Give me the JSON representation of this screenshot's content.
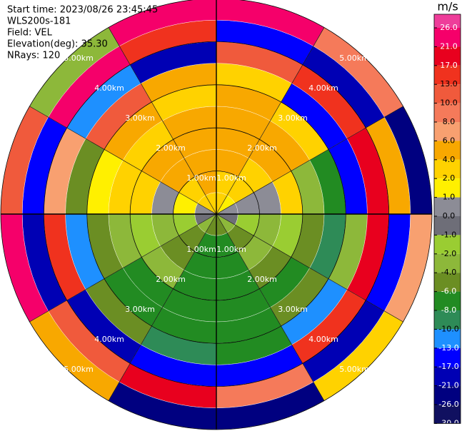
{
  "chart_data": {
    "type": "polar-field",
    "header": [
      "Start time: 2023/08/26 23:45:45",
      "WLS200s-181",
      "Field: VEL",
      "Elevation(deg): 35.30",
      "NRays: 120"
    ],
    "range_rings": [
      {
        "value": 1,
        "label": "1.00km"
      },
      {
        "value": 2,
        "label": "2.00km"
      },
      {
        "value": 3,
        "label": "3.00km"
      },
      {
        "value": 4,
        "label": "4.00km"
      },
      {
        "value": 5,
        "label": "5.00km"
      }
    ],
    "field": [
      [
        3,
        3,
        5,
        5,
        5,
        5,
        3,
        12,
        -15,
        22
      ],
      [
        1,
        3,
        3,
        5,
        5,
        3,
        -15,
        15,
        -20,
        9
      ],
      [
        0,
        0.5,
        0.5,
        3,
        -3,
        -8,
        -15,
        20,
        5,
        -22
      ],
      [
        -1,
        -1.5,
        -3,
        -1.5,
        -5,
        -10,
        -3,
        18,
        -14,
        7
      ],
      [
        -3,
        -5,
        -3,
        -5,
        -7,
        -5,
        -11,
        14,
        -20,
        3
      ],
      [
        -5,
        -7,
        -7,
        -7,
        -7,
        -7,
        -7,
        -14,
        9,
        -24
      ],
      [
        -5,
        -7,
        -7,
        -7,
        -7,
        -7,
        -9,
        -15,
        19,
        -25
      ],
      [
        -3,
        -5,
        -5,
        -3,
        -7,
        -7,
        -5,
        -18,
        11,
        5
      ],
      [
        -1,
        -1.5,
        -3,
        -1.5,
        -3,
        -5,
        -12,
        16,
        -20,
        24
      ],
      [
        0.5,
        1.5,
        0.5,
        3,
        3,
        1.5,
        -5,
        7,
        -16,
        12
      ],
      [
        3,
        3,
        5,
        5,
        3,
        5,
        12,
        -11,
        22,
        -3
      ],
      [
        3,
        5,
        5,
        5,
        5,
        3,
        5,
        -18,
        14,
        23
      ]
    ],
    "colorbar": {
      "title": "m/s",
      "ticks": [
        {
          "value": 26,
          "label": "26.0"
        },
        {
          "value": 21,
          "label": "21.0"
        },
        {
          "value": 17,
          "label": "17.0"
        },
        {
          "value": 13,
          "label": "13.0"
        },
        {
          "value": 10,
          "label": "10.0"
        },
        {
          "value": 8,
          "label": "8.0"
        },
        {
          "value": 6,
          "label": "6.0"
        },
        {
          "value": 4,
          "label": "4.0"
        },
        {
          "value": 2,
          "label": "2.0"
        },
        {
          "value": 1,
          "label": "1.0"
        },
        {
          "value": 0,
          "label": "0.0"
        },
        {
          "value": -1,
          "label": "-1.0"
        },
        {
          "value": -2,
          "label": "-2.0"
        },
        {
          "value": -4,
          "label": "-4.0"
        },
        {
          "value": -6,
          "label": "-6.0"
        },
        {
          "value": -8,
          "label": "-8.0"
        },
        {
          "value": -10,
          "label": "-10.0"
        },
        {
          "value": -13,
          "label": "-13.0"
        },
        {
          "value": -17,
          "label": "-17.0"
        },
        {
          "value": -21,
          "label": "-21.0"
        },
        {
          "value": -26,
          "label": "-26.0"
        },
        {
          "value": -30,
          "label": "-30.0"
        }
      ],
      "colors": [
        "#ee3d9a",
        "#f5006a",
        "#e8001e",
        "#f0321e",
        "#f05a3c",
        "#f57a5a",
        "#f8a070",
        "#f8a800",
        "#ffd200",
        "#fff000",
        "#8c8c96",
        "#6e6e78",
        "#9acd32",
        "#8db83a",
        "#6b8e23",
        "#228b22",
        "#2e8b57",
        "#1e90ff",
        "#0000ff",
        "#0000b4",
        "#000080",
        "#101060"
      ]
    }
  }
}
